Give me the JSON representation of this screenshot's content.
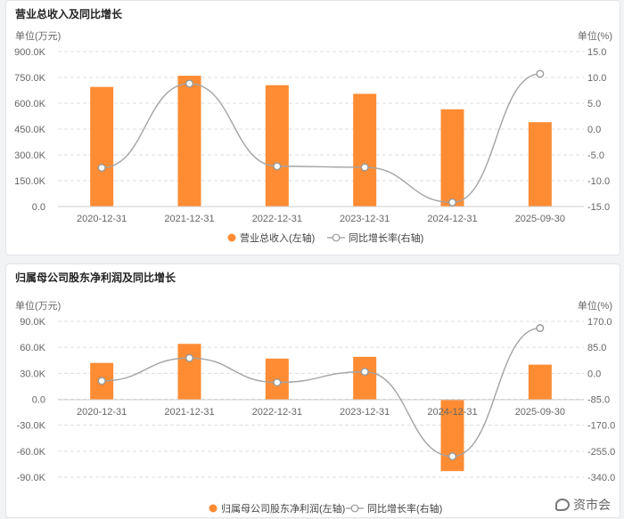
{
  "charts": [
    {
      "title": "营业总收入及同比增长",
      "left_unit": "单位(万元)",
      "right_unit": "单位(%)",
      "bar_color": "#ff8c33",
      "line_color": "#a3a3a3",
      "legend": {
        "bar": "营业总收入(左轴)",
        "line": "同比增长率(右轴)"
      }
    },
    {
      "title": "归属母公司股东净利润及同比增长",
      "left_unit": "单位(万元)",
      "right_unit": "单位(%)",
      "bar_color": "#ff8c33",
      "line_color": "#a3a3a3",
      "legend": {
        "bar": "归属母公司股东净利润(左轴)",
        "line": "同比增长率(右轴)"
      }
    }
  ],
  "chart_data": [
    {
      "type": "bar+line",
      "categories": [
        "2020-12-31",
        "2021-12-31",
        "2022-12-31",
        "2023-12-31",
        "2024-12-31",
        "2025-09-30"
      ],
      "series": [
        {
          "name": "营业总收入(左轴)",
          "axis": "left",
          "values": [
            695000,
            760000,
            705000,
            655000,
            565000,
            490000
          ]
        },
        {
          "name": "同比增长率(右轴)",
          "axis": "right",
          "values": [
            -7.5,
            8.8,
            -7.2,
            -7.4,
            -14.2,
            10.7
          ]
        }
      ],
      "left_ticks": [
        "900.0K",
        "750.0K",
        "600.0K",
        "450.0K",
        "300.0K",
        "150.0K",
        "0.0"
      ],
      "right_ticks": [
        "15.0",
        "10.0",
        "5.0",
        "0.0",
        "-5.0",
        "-10.0",
        "-15.0"
      ],
      "left_range": [
        0,
        900000
      ],
      "right_range": [
        -15,
        15
      ],
      "grid": true,
      "legend_position": "bottom"
    },
    {
      "type": "bar+line",
      "categories": [
        "2020-12-31",
        "2021-12-31",
        "2022-12-31",
        "2023-12-31",
        "2024-12-31",
        "2025-09-30"
      ],
      "series": [
        {
          "name": "归属母公司股东净利润(左轴)",
          "axis": "left",
          "values": [
            42000,
            64000,
            47000,
            49000,
            -83000,
            40000
          ]
        },
        {
          "name": "同比增长率(右轴)",
          "axis": "right",
          "values": [
            -25,
            50,
            -30,
            5,
            -272,
            148
          ]
        }
      ],
      "left_ticks": [
        "90.0K",
        "60.0K",
        "30.0K",
        "0.0",
        "-30.0K",
        "-60.0K",
        "-90.0K"
      ],
      "right_ticks": [
        "170.0",
        "85.0",
        "0.0",
        "-85.0",
        "-170.0",
        "-255.0",
        "-340.0"
      ],
      "left_range": [
        -90000,
        90000
      ],
      "right_range": [
        -340,
        170
      ],
      "grid": true,
      "legend_position": "bottom"
    }
  ],
  "watermark": "资市会"
}
